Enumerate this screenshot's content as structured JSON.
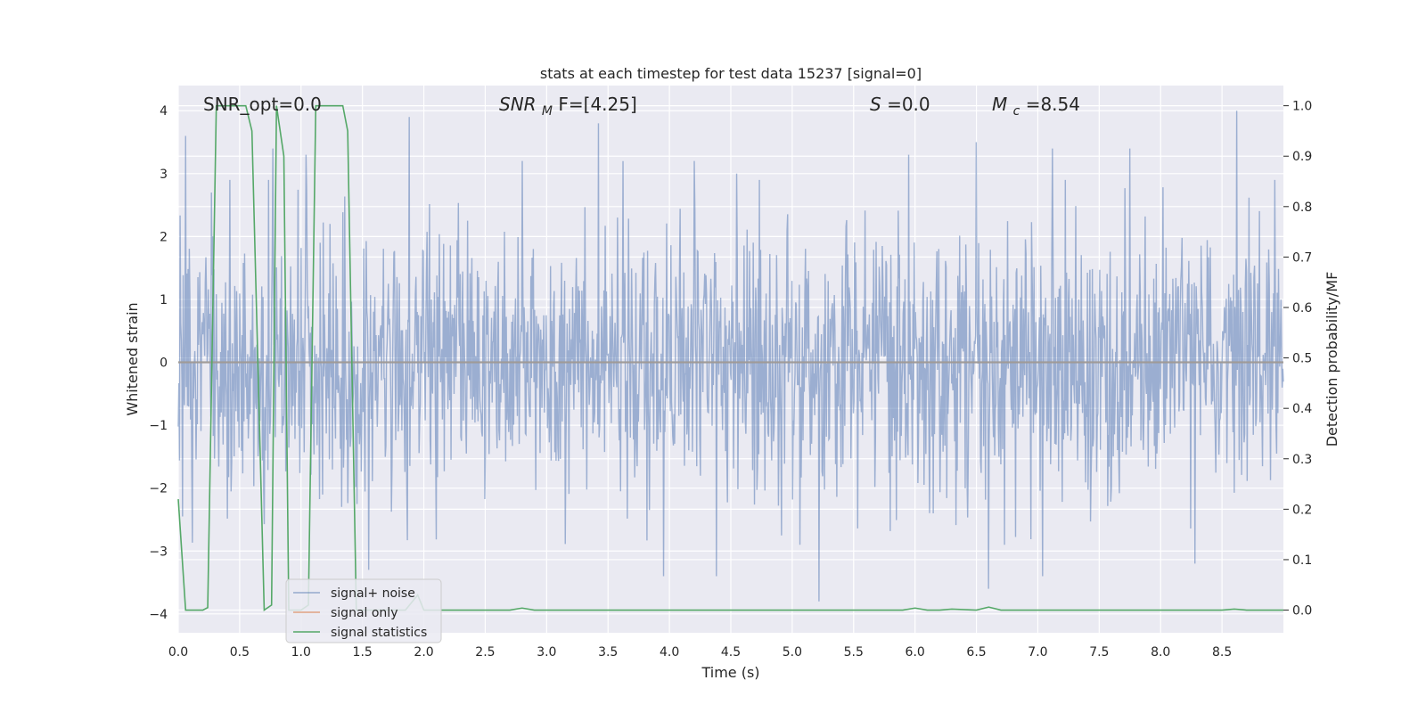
{
  "chart_data": {
    "type": "line",
    "title": "stats at each timestep for test data 15237 [signal=0]",
    "xlabel": "Time (s)",
    "ylabel_left": "Whitened strain",
    "ylabel_right": "Detection probability/MF",
    "xlim": [
      0,
      9.0
    ],
    "ylim_left": [
      -4.3,
      4.4
    ],
    "ylim_right": [
      -0.045,
      1.04
    ],
    "x_ticks": [
      "0.0",
      "0.5",
      "1.0",
      "1.5",
      "2.0",
      "2.5",
      "3.0",
      "3.5",
      "4.0",
      "4.5",
      "5.0",
      "5.5",
      "6.0",
      "6.5",
      "7.0",
      "7.5",
      "8.0",
      "8.5"
    ],
    "x_tick_values": [
      0,
      0.5,
      1,
      1.5,
      2,
      2.5,
      3,
      3.5,
      4,
      4.5,
      5,
      5.5,
      6,
      6.5,
      7,
      7.5,
      8,
      8.5
    ],
    "y_left_ticks": [
      "4",
      "3",
      "2",
      "1",
      "0",
      "−1",
      "−2",
      "−3",
      "−4"
    ],
    "y_left_tick_values": [
      4,
      3,
      2,
      1,
      0,
      -1,
      -2,
      -3,
      -4
    ],
    "y_right_ticks": [
      "1.0",
      "0.9",
      "0.8",
      "0.7",
      "0.6",
      "0.5",
      "0.4",
      "0.3",
      "0.2",
      "0.1",
      "0.0"
    ],
    "y_right_tick_values": [
      1.0,
      0.9,
      0.8,
      0.7,
      0.6,
      0.5,
      0.4,
      0.3,
      0.2,
      0.1,
      0.0
    ],
    "grid": true,
    "annotations": {
      "snr_opt": "SNR_opt=0.0",
      "snr_mf_base": "SNR",
      "snr_mf_sub": "M",
      "snr_mf_rest": "F=[4.25]",
      "s_var": "S",
      "s_rest": "=0.0",
      "mc_base": "M",
      "mc_sub": "c",
      "mc_rest": "=8.54"
    },
    "legend": {
      "placement": "lower-left",
      "entries": [
        "signal+ noise",
        "signal only",
        "signal statistics"
      ]
    },
    "series": [
      {
        "name": "signal+ noise",
        "color": "#4c72b0",
        "description": "whitened noise strain, amplitude roughly -4 to 4",
        "seed": 15237,
        "x_range": [
          0,
          9.0
        ],
        "n_points": 1800,
        "amplitude_peaks": [
          [
            0.06,
            3.6
          ],
          [
            0.27,
            2.7
          ],
          [
            0.42,
            2.9
          ],
          [
            0.77,
            3.4
          ],
          [
            1.04,
            3.3
          ],
          [
            1.88,
            3.9
          ],
          [
            2.8,
            3.2
          ],
          [
            3.42,
            3.8
          ],
          [
            3.62,
            3.2
          ],
          [
            4.2,
            3.2
          ],
          [
            4.55,
            3.0
          ],
          [
            5.95,
            3.3
          ],
          [
            6.5,
            3.5
          ],
          [
            7.12,
            3.4
          ],
          [
            7.75,
            3.4
          ],
          [
            8.62,
            4.0
          ],
          [
            8.93,
            2.9
          ],
          [
            5.22,
            -3.8
          ],
          [
            3.95,
            -3.4
          ],
          [
            4.38,
            -3.4
          ],
          [
            6.6,
            -3.6
          ],
          [
            7.04,
            -3.4
          ],
          [
            8.28,
            -3.2
          ],
          [
            1.55,
            -3.3
          ]
        ]
      },
      {
        "name": "signal only",
        "color": "#dd8452",
        "values_constant": 0.0
      },
      {
        "name": "signal statistics",
        "color": "#55a868",
        "x": [
          0.0,
          0.06,
          0.2,
          0.24,
          0.31,
          0.55,
          0.6,
          0.7,
          0.76,
          0.8,
          0.86,
          0.9,
          1.0,
          1.06,
          1.12,
          1.34,
          1.38,
          1.45,
          1.85,
          1.95,
          2.0,
          2.7,
          2.8,
          2.9,
          5.9,
          6.0,
          6.1,
          6.2,
          6.3,
          6.5,
          6.6,
          6.7,
          8.5,
          8.6,
          8.7,
          9.0
        ],
        "y": [
          0.22,
          0.0,
          0.0,
          0.005,
          1.0,
          1.0,
          0.95,
          0.0,
          0.01,
          1.0,
          0.9,
          0.0,
          0.0,
          0.01,
          1.0,
          1.0,
          0.95,
          0.0,
          0.0,
          0.03,
          0.0,
          0.0,
          0.004,
          0.0,
          0.0,
          0.004,
          0.0,
          0.0,
          0.002,
          0.0,
          0.006,
          0.0,
          0.0,
          0.002,
          0.0,
          0.0
        ]
      }
    ]
  }
}
